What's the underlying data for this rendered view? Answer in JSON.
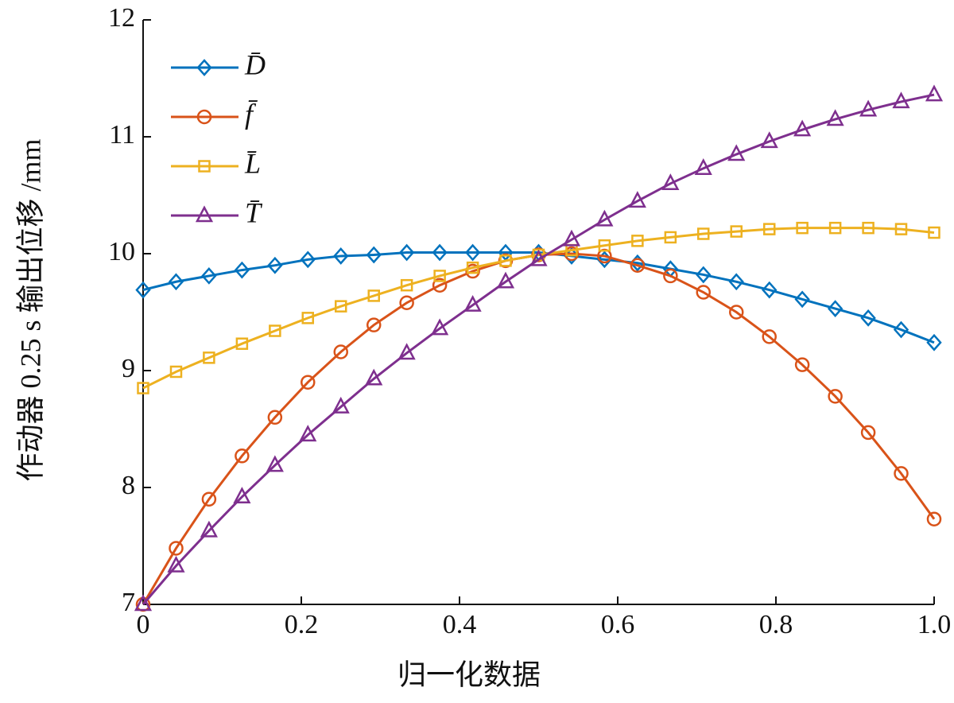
{
  "chart_data": {
    "type": "line",
    "xlabel": "归一化数据",
    "ylabel": "作动器 0.25 s 输出位移 /mm",
    "x": [
      0,
      0.0417,
      0.0833,
      0.125,
      0.1667,
      0.2083,
      0.25,
      0.2917,
      0.3333,
      0.375,
      0.4167,
      0.4583,
      0.5,
      0.5417,
      0.5833,
      0.625,
      0.6667,
      0.7083,
      0.75,
      0.7917,
      0.8333,
      0.875,
      0.9167,
      0.9583,
      1
    ],
    "series": [
      {
        "name": "D̄",
        "color": "#0072bd",
        "marker": "diamond",
        "values": [
          9.69,
          9.76,
          9.81,
          9.86,
          9.9,
          9.95,
          9.98,
          9.99,
          10.01,
          10.01,
          10.01,
          10.01,
          10.01,
          9.98,
          9.95,
          9.92,
          9.87,
          9.82,
          9.76,
          9.69,
          9.61,
          9.53,
          9.45,
          9.35,
          9.24
        ]
      },
      {
        "name": "f̄",
        "color": "#d95319",
        "marker": "circle",
        "values": [
          7.0,
          7.48,
          7.9,
          8.27,
          8.6,
          8.9,
          9.16,
          9.39,
          9.58,
          9.73,
          9.85,
          9.94,
          9.99,
          10.0,
          9.98,
          9.9,
          9.81,
          9.67,
          9.5,
          9.29,
          9.05,
          8.78,
          8.47,
          8.12,
          7.73
        ]
      },
      {
        "name": "L̄",
        "color": "#edb120",
        "marker": "square",
        "values": [
          8.85,
          8.99,
          9.11,
          9.23,
          9.34,
          9.45,
          9.55,
          9.64,
          9.73,
          9.81,
          9.88,
          9.94,
          9.99,
          10.03,
          10.07,
          10.11,
          10.14,
          10.17,
          10.19,
          10.21,
          10.22,
          10.22,
          10.22,
          10.21,
          10.18
        ]
      },
      {
        "name": "T̄",
        "color": "#7e2f8e",
        "marker": "triangle",
        "values": [
          7.0,
          7.33,
          7.63,
          7.92,
          8.19,
          8.45,
          8.69,
          8.93,
          9.15,
          9.36,
          9.56,
          9.76,
          9.95,
          10.12,
          10.29,
          10.45,
          10.6,
          10.73,
          10.85,
          10.96,
          11.06,
          11.15,
          11.23,
          11.3,
          11.36
        ]
      }
    ],
    "xlim": [
      0,
      1
    ],
    "ylim": [
      7,
      12
    ],
    "xticks": [
      0,
      0.2,
      0.4,
      0.6,
      0.8,
      {
        "value": 1,
        "label": "1.0"
      }
    ],
    "yticks": [
      7,
      8,
      9,
      10,
      11,
      12
    ],
    "grid": false,
    "legend": "upper left"
  }
}
